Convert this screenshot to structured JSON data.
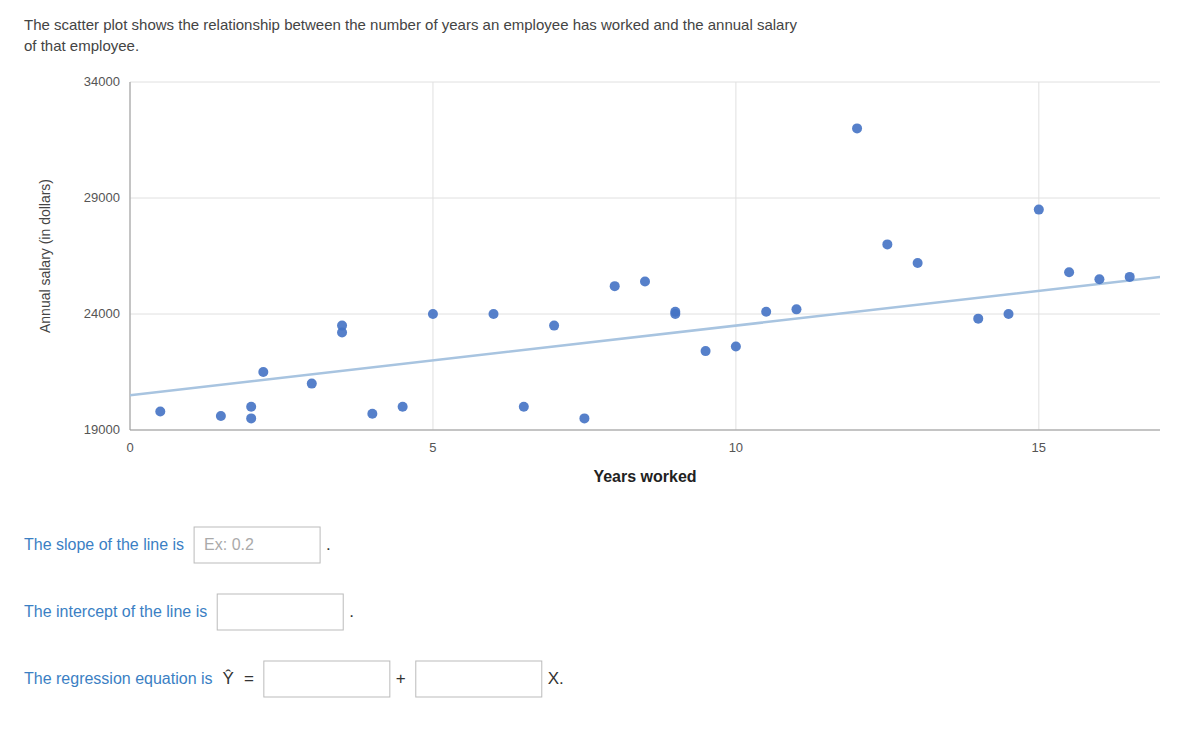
{
  "chart_data": {
    "type": "scatter",
    "title": "The scatter plot shows the relationship between the number of years an employee has worked and the annual salary\nof that employee.",
    "x_label": "Years worked",
    "y_label": "Annual salary (in dollars)",
    "series": [
      {
        "type": "scatter",
        "color": "#4472c4",
        "x": [
          0.5,
          1.5,
          2.0,
          2.0,
          2.2,
          3.0,
          3.5,
          3.5,
          4.0,
          4.5,
          5.0,
          6.0,
          6.5,
          7.0,
          7.5,
          8.0,
          8.5,
          9.0,
          9.0,
          9.5,
          10.0,
          10.5,
          11.0,
          12.0,
          12.5,
          13.0,
          14.0,
          14.5,
          15.0,
          15.5,
          16.0,
          16.5
        ],
        "values": [
          19800,
          19600,
          19500,
          20000,
          21500,
          21000,
          23500,
          23200,
          19700,
          20000,
          24000,
          24000,
          20000,
          23500,
          19500,
          25200,
          25400,
          24000,
          24100,
          22400,
          22600,
          24100,
          24200,
          32000,
          27000,
          26200,
          23800,
          24000,
          28500,
          25800,
          25500,
          25600
        ]
      },
      {
        "type": "line",
        "color": "#a8c4e0",
        "x": [
          0,
          17
        ],
        "values": [
          20500,
          25600
        ]
      }
    ],
    "xlim": [
      0,
      17
    ],
    "ylim": [
      19000,
      34000
    ],
    "xticks": [
      0,
      5,
      10,
      15
    ],
    "yticks": [
      19000,
      24000,
      29000,
      34000
    ],
    "grid": true,
    "annotations": [
      [
        "The slope of the line is",
        "Ex: 0.2",
        "."
      ],
      [
        "The intercept of the line is",
        "."
      ],
      [
        "The regression equation is",
        "Ŷ",
        "=",
        "+",
        "X."
      ]
    ]
  }
}
